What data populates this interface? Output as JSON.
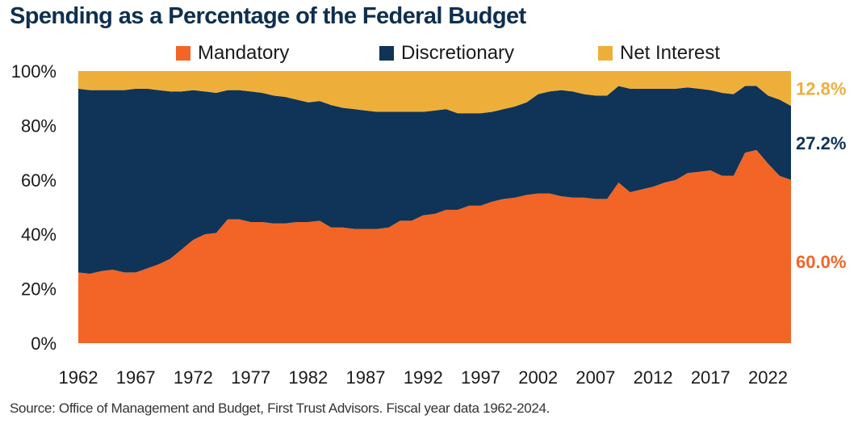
{
  "title": "Spending as a Percentage of the Federal Budget",
  "source": "Source: Office of Management and Budget, First Trust Advisors.  Fiscal year data 1962-2024.",
  "colors": {
    "mandatory": "#f26526",
    "discretionary": "#0f3458",
    "net_interest": "#eeaf3a"
  },
  "chart_data": {
    "type": "area",
    "stacked": true,
    "title": "Spending as a Percentage of the Federal Budget",
    "xlim": [
      1962,
      2024
    ],
    "ylim": [
      0,
      100
    ],
    "x_tick_labels": [
      "1962",
      "1967",
      "1972",
      "1977",
      "1982",
      "1987",
      "1992",
      "1997",
      "2002",
      "2007",
      "2012",
      "2017",
      "2022"
    ],
    "y_tick_labels": [
      "0%",
      "20%",
      "40%",
      "60%",
      "80%",
      "100%"
    ],
    "legend_position": "top",
    "x": [
      1962,
      1963,
      1964,
      1965,
      1966,
      1967,
      1968,
      1969,
      1970,
      1971,
      1972,
      1973,
      1974,
      1975,
      1976,
      1977,
      1978,
      1979,
      1980,
      1981,
      1982,
      1983,
      1984,
      1985,
      1986,
      1987,
      1988,
      1989,
      1990,
      1991,
      1992,
      1993,
      1994,
      1995,
      1996,
      1997,
      1998,
      1999,
      2000,
      2001,
      2002,
      2003,
      2004,
      2005,
      2006,
      2007,
      2008,
      2009,
      2010,
      2011,
      2012,
      2013,
      2014,
      2015,
      2016,
      2017,
      2018,
      2019,
      2020,
      2021,
      2022,
      2023,
      2024
    ],
    "series": [
      {
        "name": "Mandatory",
        "values": [
          26,
          25.5,
          26.5,
          27,
          26,
          26,
          27.5,
          29,
          31,
          34.5,
          38,
          40,
          40.5,
          45.5,
          45.5,
          44.5,
          44.5,
          44,
          44,
          44.5,
          44.5,
          45,
          42.5,
          42.5,
          42,
          42,
          42,
          42.5,
          45,
          45,
          47,
          47.5,
          49,
          49,
          50.5,
          50.5,
          52,
          53,
          53.5,
          54.5,
          55,
          55,
          54,
          53.5,
          53.5,
          53,
          53,
          59,
          55.5,
          56.5,
          57.5,
          59,
          60,
          62.5,
          63,
          63.5,
          61.5,
          61.5,
          70,
          71,
          66,
          61.5,
          60.0
        ],
        "end_label": "60.0%"
      },
      {
        "name": "Discretionary",
        "values": [
          67.5,
          67.5,
          66.5,
          66,
          67,
          67.5,
          66,
          64,
          61.5,
          58,
          55,
          52.5,
          51.5,
          47.5,
          47.5,
          48,
          47.5,
          47,
          46.5,
          45,
          44,
          44,
          45,
          44,
          44,
          43.5,
          43,
          42.5,
          40,
          40,
          38,
          38,
          37,
          35.5,
          34,
          34,
          33,
          33,
          33.5,
          34,
          36.5,
          37.5,
          39,
          39,
          38,
          38,
          38,
          35.5,
          38,
          37,
          36,
          34.5,
          33.5,
          31.5,
          30.5,
          29.5,
          30.5,
          30,
          24.5,
          23.5,
          25,
          28,
          27.2
        ],
        "end_label": "27.2%"
      },
      {
        "name": "Net Interest",
        "values": [
          6.5,
          7,
          7,
          7,
          7,
          6.5,
          6.5,
          7,
          7.5,
          7.5,
          7,
          7.5,
          8,
          7,
          7,
          7.5,
          8,
          9,
          9.5,
          10.5,
          11.5,
          11,
          12.5,
          13.5,
          14,
          14.5,
          15,
          15,
          15,
          15,
          15,
          14.5,
          14,
          15.5,
          15.5,
          15.5,
          15,
          14,
          13,
          11.5,
          8.5,
          7.5,
          7,
          7.5,
          8.5,
          9,
          9,
          5.5,
          6.5,
          6.5,
          6.5,
          6.5,
          6.5,
          6,
          6.5,
          7,
          8,
          8.5,
          5.5,
          5.5,
          9,
          10.5,
          12.8
        ],
        "end_label": "12.8%"
      }
    ]
  }
}
